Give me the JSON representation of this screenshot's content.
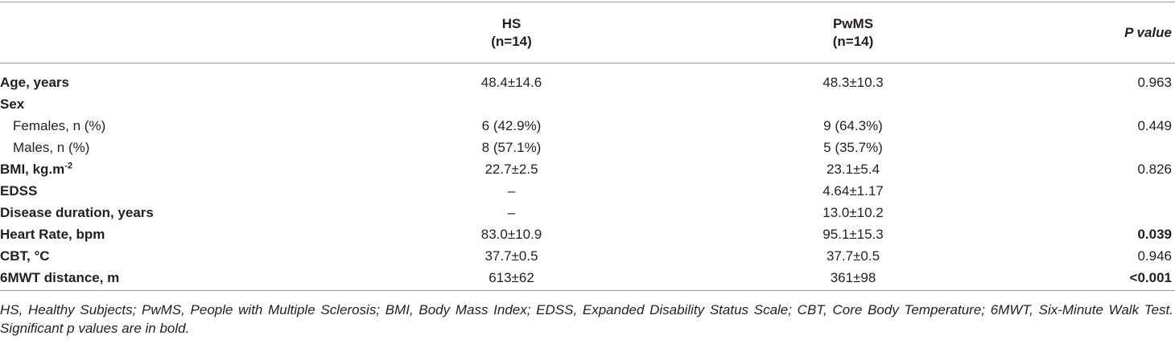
{
  "table": {
    "header": {
      "hs": "HS",
      "hs_n": "(n=14)",
      "pwms": "PwMS",
      "pwms_n": "(n=14)",
      "p": "P value"
    },
    "rows": [
      {
        "label": "Age, years",
        "hs": "48.4±14.6",
        "pwms": "48.3±10.3",
        "p": "0.963"
      },
      {
        "label": "Sex"
      },
      {
        "label": "Females, n (%)",
        "hs": "6 (42.9%)",
        "pwms": "9 (64.3%)",
        "p": "0.449"
      },
      {
        "label": "Males, n (%)",
        "hs": "8 (57.1%)",
        "pwms": "5 (35.7%)"
      },
      {
        "label": "BMI, kg.m",
        "label_sup": "-2",
        "hs": "22.7±2.5",
        "pwms": "23.1±5.4",
        "p": "0.826"
      },
      {
        "label": "EDSS",
        "hs": "–",
        "pwms": "4.64±1.17"
      },
      {
        "label": "Disease duration, years",
        "hs": "–",
        "pwms": "13.0±10.2"
      },
      {
        "label": "Heart Rate, bpm",
        "hs": "83.0±10.9",
        "pwms": "95.1±15.3",
        "p": "0.039"
      },
      {
        "label": "CBT, °C",
        "hs": "37.7±0.5",
        "pwms": "37.7±0.5",
        "p": "0.946"
      },
      {
        "label": "6MWT distance, m",
        "hs": "613±62",
        "pwms": "361±98",
        "p": "<0.001"
      }
    ],
    "footnote": "HS, Healthy Subjects; PwMS, People with Multiple Sclerosis; BMI, Body Mass Index; EDSS, Expanded Disability Status Scale; CBT, Core Body Temperature; 6MWT, Six-Minute Walk Test. Significant p values are in bold."
  }
}
